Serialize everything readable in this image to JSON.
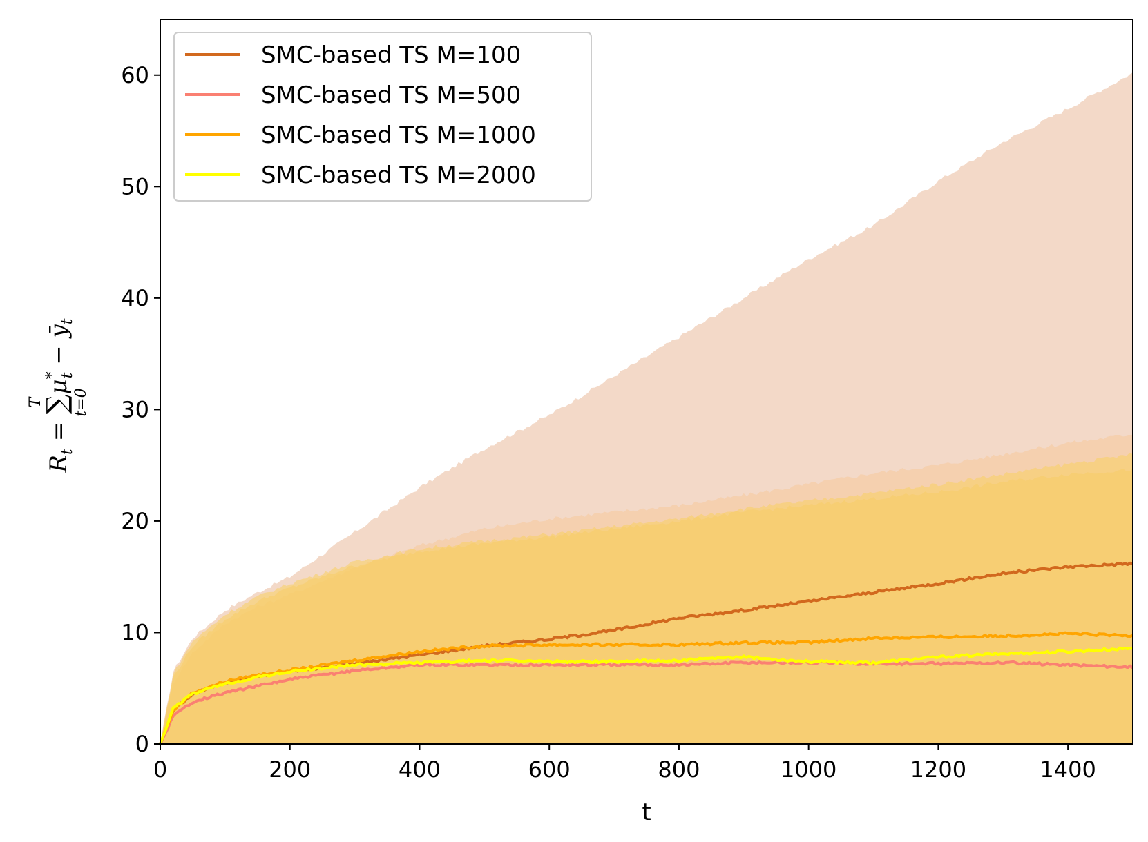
{
  "chart_data": {
    "type": "line",
    "title": "",
    "xlabel": "t",
    "ylabel": {
      "lhs": "R",
      "lhs_sub": "t",
      "eq": " = ",
      "sum_sym": "∑",
      "sum_upper": "T",
      "sum_lower": "t=0",
      "term1": "μ",
      "term1_sup": "*",
      "term1_sub": "t",
      "minus": " − ",
      "term2": "ȳ",
      "term2_sub": "t"
    },
    "xlim": [
      0,
      1500
    ],
    "ylim": [
      0,
      65
    ],
    "xticks": [
      0,
      200,
      400,
      600,
      800,
      1000,
      1200,
      1400
    ],
    "yticks": [
      0,
      10,
      20,
      30,
      40,
      50,
      60
    ],
    "xtick_labels": [
      "0",
      "200",
      "400",
      "600",
      "800",
      "1000",
      "1200",
      "1400"
    ],
    "ytick_labels": [
      "0",
      "10",
      "20",
      "30",
      "40",
      "50",
      "60"
    ],
    "grid": false,
    "legend_position": "top-left",
    "series": [
      {
        "name": "SMC-based TS M=100",
        "color": "#d2691e",
        "band_color": "#f2d5c2",
        "x": [
          0,
          20,
          50,
          100,
          150,
          200,
          300,
          400,
          500,
          600,
          700,
          800,
          900,
          1000,
          1100,
          1200,
          1300,
          1400,
          1500
        ],
        "mean": [
          0,
          3.0,
          4.5,
          5.5,
          6.1,
          6.5,
          7.2,
          8.0,
          8.8,
          9.4,
          10.2,
          11.3,
          12.0,
          12.8,
          13.6,
          14.4,
          15.3,
          15.9,
          16.2
        ],
        "upper": [
          0,
          6.5,
          9.5,
          12.0,
          13.6,
          15.0,
          19.0,
          23.0,
          26.5,
          29.5,
          33.0,
          36.5,
          40.0,
          43.5,
          46.5,
          50.5,
          54.0,
          57.0,
          60.2
        ],
        "lower": [
          0,
          0,
          0,
          0,
          0,
          0,
          0,
          0,
          0,
          0,
          0,
          0,
          0,
          0,
          0,
          0,
          0,
          0,
          0
        ]
      },
      {
        "name": "SMC-based TS M=500",
        "color": "#fa8072",
        "band_color": "#f5c89a",
        "x": [
          0,
          20,
          50,
          100,
          150,
          200,
          300,
          400,
          500,
          600,
          700,
          800,
          900,
          1000,
          1100,
          1200,
          1300,
          1400,
          1500
        ],
        "mean": [
          0,
          2.5,
          3.8,
          4.6,
          5.2,
          5.8,
          6.6,
          7.1,
          7.1,
          7.1,
          7.1,
          7.1,
          7.3,
          7.3,
          7.2,
          7.2,
          7.3,
          7.1,
          6.9
        ],
        "upper": [
          0,
          5.5,
          8.2,
          10.8,
          12.3,
          13.4,
          15.8,
          17.8,
          19.3,
          20.2,
          20.8,
          21.4,
          22.3,
          23.3,
          24.3,
          25.0,
          26.0,
          27.0,
          27.8
        ],
        "lower": [
          0,
          0,
          0,
          0,
          0,
          0,
          0,
          0,
          0,
          0,
          0,
          0,
          0,
          0,
          0,
          0,
          0,
          0,
          0
        ]
      },
      {
        "name": "SMC-based TS M=1000",
        "color": "#ffa500",
        "band_color": "#f8c86a",
        "x": [
          0,
          20,
          50,
          100,
          150,
          200,
          300,
          400,
          500,
          600,
          700,
          800,
          900,
          1000,
          1100,
          1200,
          1300,
          1400,
          1500
        ],
        "mean": [
          0,
          3.0,
          4.6,
          5.6,
          6.2,
          6.6,
          7.5,
          8.3,
          8.8,
          8.9,
          8.9,
          8.9,
          9.1,
          9.1,
          9.5,
          9.6,
          9.7,
          9.9,
          9.7
        ],
        "upper": [
          0,
          6.0,
          8.8,
          11.2,
          12.8,
          14.0,
          16.0,
          17.3,
          18.0,
          18.6,
          19.3,
          20.0,
          20.8,
          21.4,
          22.0,
          22.6,
          23.5,
          24.2,
          24.6
        ],
        "lower": [
          0,
          0,
          0,
          0,
          0,
          0,
          0,
          0,
          0,
          0,
          0,
          0,
          0,
          0,
          0,
          0,
          0,
          0,
          0
        ]
      },
      {
        "name": "SMC-based TS M=2000",
        "color": "#ffff00",
        "band_color": "#f8d060",
        "x": [
          0,
          20,
          50,
          100,
          150,
          200,
          300,
          400,
          500,
          600,
          700,
          800,
          900,
          1000,
          1100,
          1200,
          1300,
          1400,
          1500
        ],
        "mean": [
          0,
          3.2,
          4.5,
          5.4,
          6.0,
          6.5,
          7.1,
          7.3,
          7.5,
          7.4,
          7.4,
          7.5,
          7.8,
          7.4,
          7.3,
          7.8,
          8.1,
          8.3,
          8.6
        ],
        "upper": [
          0,
          6.3,
          9.2,
          11.6,
          13.2,
          14.4,
          16.3,
          17.5,
          18.2,
          18.8,
          19.5,
          20.2,
          21.1,
          21.8,
          22.5,
          23.3,
          24.2,
          25.1,
          26.0
        ],
        "lower": [
          0,
          0,
          0,
          0,
          0,
          0,
          0,
          0,
          0,
          0,
          0,
          0,
          0,
          0,
          0,
          0,
          0,
          0,
          0
        ]
      }
    ]
  }
}
